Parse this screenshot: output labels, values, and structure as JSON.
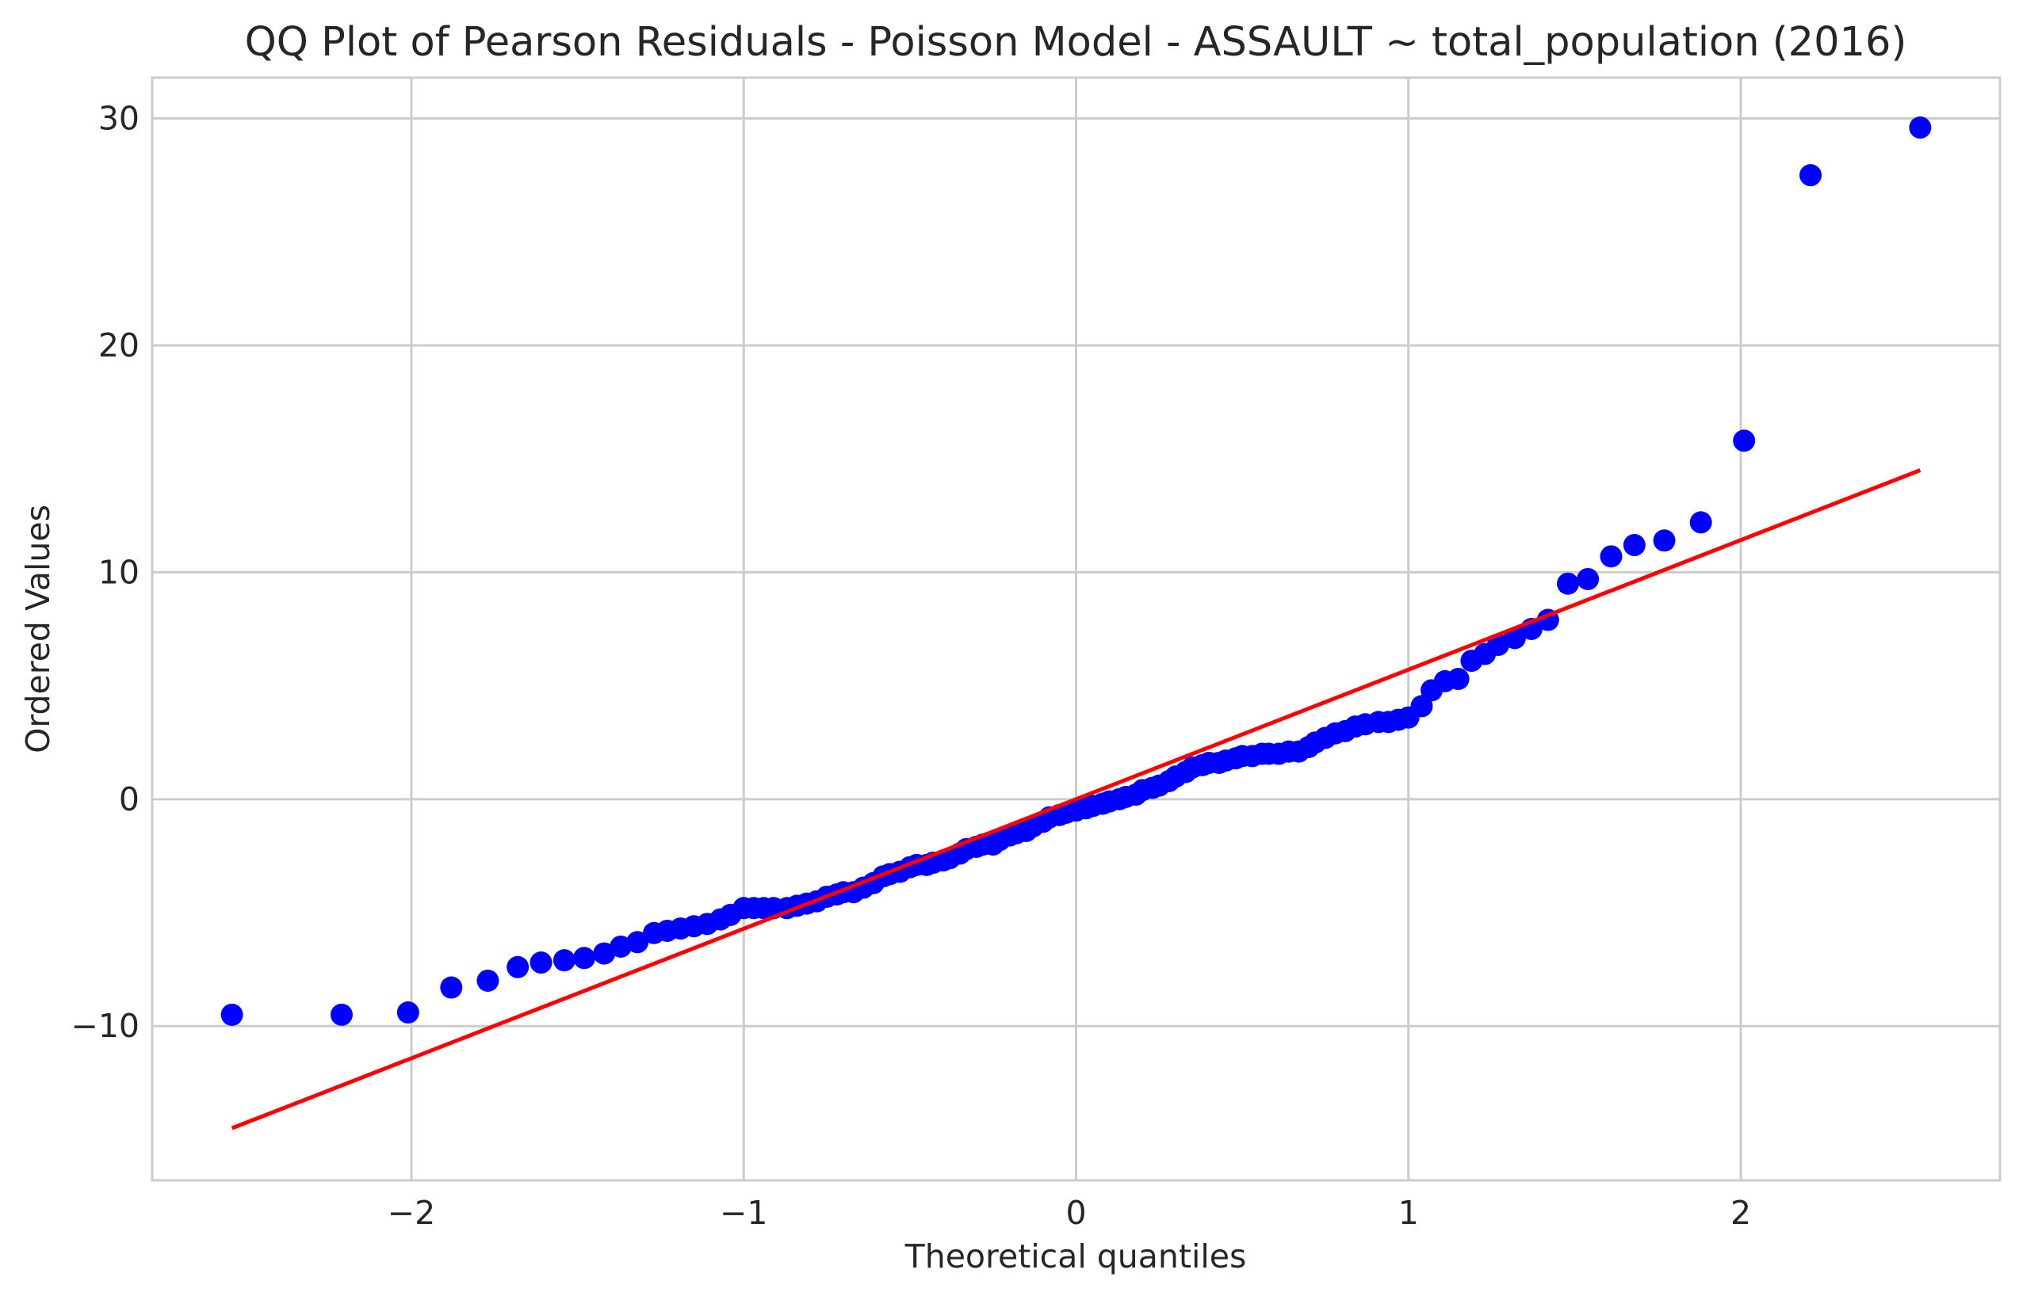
{
  "chart_data": {
    "type": "scatter",
    "title": "QQ Plot of Pearson Residuals - Poisson Model - ASSAULT ~ total_population (2016)",
    "xlabel": "Theoretical quantiles",
    "ylabel": "Ordered Values",
    "xlim": [
      -2.78,
      2.78
    ],
    "ylim": [
      -16.8,
      31.8
    ],
    "xticks": [
      -2,
      -1,
      0,
      1,
      2
    ],
    "xtick_labels": [
      "−2",
      "−1",
      "0",
      "1",
      "2"
    ],
    "yticks": [
      -10,
      0,
      10,
      20,
      30
    ],
    "ytick_labels": [
      "−10",
      "0",
      "10",
      "20",
      "30"
    ],
    "grid": true,
    "colors": {
      "points": "#0000ff",
      "fit_line": "#ff0000",
      "grid": "#cccccc",
      "spine": "#cccccc",
      "text": "#262626"
    },
    "series": [
      {
        "kind": "points",
        "x": [
          -2.54,
          -2.21,
          -2.01,
          -1.88,
          -1.77,
          -1.68,
          -1.61,
          -1.54,
          -1.48,
          -1.42,
          -1.37,
          -1.32,
          -1.27,
          -1.23,
          -1.19,
          -1.15,
          -1.11,
          -1.07,
          -1.04,
          -1.0,
          -0.97,
          -0.94,
          -0.91,
          -0.87,
          -0.84,
          -0.81,
          -0.78,
          -0.75,
          -0.72,
          -0.7,
          -0.67,
          -0.64,
          -0.61,
          -0.58,
          -0.56,
          -0.53,
          -0.5,
          -0.48,
          -0.45,
          -0.43,
          -0.4,
          -0.38,
          -0.35,
          -0.33,
          -0.3,
          -0.28,
          -0.25,
          -0.23,
          -0.2,
          -0.18,
          -0.15,
          -0.13,
          -0.1,
          -0.08,
          -0.05,
          -0.03,
          0.0,
          0.03,
          0.05,
          0.08,
          0.1,
          0.13,
          0.15,
          0.18,
          0.2,
          0.23,
          0.25,
          0.28,
          0.3,
          0.33,
          0.35,
          0.38,
          0.4,
          0.43,
          0.45,
          0.48,
          0.5,
          0.53,
          0.56,
          0.58,
          0.61,
          0.64,
          0.67,
          0.7,
          0.72,
          0.75,
          0.78,
          0.81,
          0.84,
          0.87,
          0.91,
          0.94,
          0.97,
          1.0,
          1.04,
          1.07,
          1.11,
          1.15,
          1.19,
          1.23,
          1.27,
          1.32,
          1.37,
          1.42,
          1.48,
          1.54,
          1.61,
          1.68,
          1.77,
          1.88,
          2.01,
          2.21,
          2.54
        ],
        "y": [
          -9.5,
          -9.5,
          -9.4,
          -8.3,
          -8.0,
          -7.4,
          -7.2,
          -7.1,
          -7.0,
          -6.8,
          -6.5,
          -6.3,
          -5.9,
          -5.8,
          -5.7,
          -5.6,
          -5.5,
          -5.3,
          -5.1,
          -4.8,
          -4.8,
          -4.8,
          -4.8,
          -4.8,
          -4.7,
          -4.6,
          -4.5,
          -4.3,
          -4.2,
          -4.1,
          -4.1,
          -3.9,
          -3.7,
          -3.4,
          -3.3,
          -3.2,
          -3.0,
          -2.9,
          -2.9,
          -2.8,
          -2.7,
          -2.6,
          -2.4,
          -2.2,
          -2.1,
          -2.0,
          -2.0,
          -1.8,
          -1.6,
          -1.5,
          -1.4,
          -1.2,
          -1.0,
          -0.8,
          -0.7,
          -0.6,
          -0.5,
          -0.4,
          -0.3,
          -0.2,
          -0.1,
          0.0,
          0.1,
          0.2,
          0.4,
          0.5,
          0.6,
          0.8,
          1.0,
          1.2,
          1.4,
          1.5,
          1.6,
          1.6,
          1.7,
          1.8,
          1.9,
          1.9,
          2.0,
          2.0,
          2.0,
          2.1,
          2.1,
          2.3,
          2.5,
          2.7,
          2.9,
          3.0,
          3.2,
          3.3,
          3.4,
          3.4,
          3.5,
          3.6,
          4.1,
          4.8,
          5.2,
          5.3,
          6.1,
          6.4,
          6.8,
          7.1,
          7.5,
          7.9,
          9.5,
          9.7,
          10.7,
          11.2,
          11.4,
          12.2,
          15.8,
          27.5,
          29.6
        ]
      },
      {
        "kind": "line",
        "x": [
          -2.54,
          2.54
        ],
        "y": [
          -14.5,
          14.5
        ]
      }
    ]
  }
}
